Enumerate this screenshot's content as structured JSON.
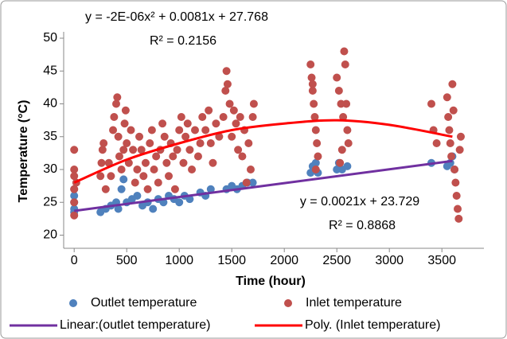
{
  "chart_data": {
    "type": "scatter",
    "x_label": "Time (hour)",
    "y_label": "Temperature (°C)",
    "xlim": [
      -100,
      3900
    ],
    "ylim": [
      18,
      50
    ],
    "xticks": [
      0,
      500,
      1000,
      1500,
      2000,
      2500,
      3000,
      3500
    ],
    "yticks": [
      20,
      25,
      30,
      35,
      40,
      45,
      50
    ],
    "grid": false,
    "legend": "bottom",
    "series": [
      {
        "name": "Outlet temperature",
        "color": "#4f81bd",
        "x": [
          0,
          0,
          0,
          0,
          0,
          250,
          300,
          350,
          400,
          420,
          450,
          470,
          500,
          550,
          600,
          650,
          700,
          750,
          800,
          850,
          900,
          950,
          1000,
          1050,
          1100,
          1200,
          1250,
          1300,
          1450,
          1500,
          1550,
          1600,
          1650,
          1700,
          2250,
          2270,
          2300,
          2320,
          2500,
          2520,
          2550,
          2600,
          3400,
          3550,
          3580,
          3600,
          3620
        ],
        "values": [
          23.5,
          25,
          26,
          27,
          24,
          23.5,
          24,
          24.5,
          25,
          24,
          27,
          28.5,
          25,
          25.5,
          26,
          24.5,
          25,
          24,
          25.5,
          25,
          26,
          25.5,
          25,
          26,
          25.5,
          26.5,
          26,
          27,
          27,
          27.5,
          27,
          27.5,
          28,
          28,
          29.5,
          30.5,
          31,
          29.5,
          30,
          31,
          30,
          30.5,
          31,
          30.5,
          31,
          32,
          30
        ]
      },
      {
        "name": "Inlet temperature",
        "color": "#c0504d",
        "x": [
          0,
          0,
          0,
          0,
          0,
          0,
          20,
          250,
          260,
          270,
          280,
          300,
          330,
          350,
          370,
          380,
          400,
          410,
          420,
          430,
          450,
          470,
          480,
          490,
          500,
          520,
          540,
          560,
          580,
          600,
          620,
          640,
          660,
          680,
          700,
          720,
          740,
          760,
          780,
          800,
          820,
          840,
          860,
          880,
          900,
          920,
          940,
          960,
          980,
          1000,
          1020,
          1040,
          1060,
          1080,
          1100,
          1120,
          1150,
          1180,
          1200,
          1220,
          1250,
          1280,
          1300,
          1320,
          1350,
          1380,
          1420,
          1440,
          1450,
          1460,
          1480,
          1500,
          1520,
          1540,
          1560,
          1580,
          1600,
          1620,
          1640,
          1660,
          1680,
          1700,
          1710,
          2250,
          2260,
          2270,
          2280,
          2290,
          2300,
          2310,
          2320,
          2300,
          2270,
          2500,
          2520,
          2540,
          2560,
          2570,
          2580,
          2600,
          2610,
          2550,
          2530,
          2590,
          3400,
          3420,
          3450,
          3550,
          3560,
          3570,
          3580,
          3590,
          3600,
          3610,
          3620,
          3630,
          3640,
          3650,
          3660,
          3670,
          3680
        ],
        "values": [
          23,
          25,
          27,
          29,
          30,
          33,
          28,
          29,
          31,
          33,
          34,
          27,
          31,
          29,
          36,
          38,
          40,
          41,
          35,
          32,
          30,
          33,
          37,
          39,
          34,
          31,
          36,
          33,
          28,
          30,
          35,
          33,
          29,
          31,
          27,
          34,
          36,
          30,
          32,
          28,
          33,
          37,
          35,
          31,
          29,
          34,
          32,
          27,
          33,
          36,
          38,
          31,
          35,
          37,
          33,
          30,
          36,
          32,
          34,
          38,
          36,
          39,
          34,
          31,
          37,
          35,
          38,
          42,
          45,
          43,
          40,
          35,
          39,
          37,
          33,
          38,
          32,
          36,
          28,
          34,
          30,
          38,
          40,
          46,
          44,
          42,
          40,
          38,
          36,
          34,
          32,
          30,
          43,
          44,
          42,
          40,
          38,
          48,
          46,
          36,
          34,
          33,
          31,
          40,
          40,
          36,
          34,
          41,
          38,
          36,
          34,
          32,
          43,
          39,
          30,
          28,
          26,
          24,
          22.5,
          33,
          35
        ]
      }
    ],
    "trendlines": [
      {
        "name": "Linear:(outlet temperature)",
        "color": "#7030a0",
        "equation": "y = 0.0021x + 23.729",
        "r_squared": "R² = 0.8868",
        "x": [
          0,
          3600
        ],
        "values": [
          23.7,
          31.3
        ]
      },
      {
        "name": "Poly. (Inlet temperature)",
        "color": "#ff0000",
        "equation": "y = -2E-06x² + 0.0081x + 27.768",
        "r_squared": "R² = 0.2156",
        "x": [
          0,
          500,
          1000,
          1500,
          2000,
          2500,
          3000,
          3600
        ],
        "values": [
          28,
          31.5,
          34,
          36,
          37,
          37.5,
          36.8,
          35
        ]
      }
    ]
  }
}
